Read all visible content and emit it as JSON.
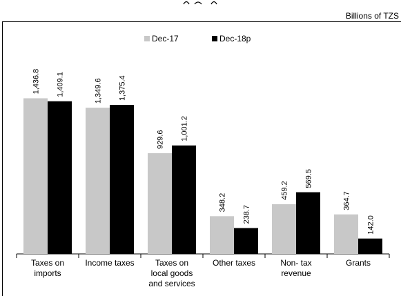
{
  "chart_data": {
    "type": "bar",
    "unit": "Billions of TZS",
    "categories": [
      [
        "Taxes on",
        "imports"
      ],
      [
        "Income taxes"
      ],
      [
        "Taxes on",
        "local goods",
        "and services"
      ],
      [
        "Other taxes"
      ],
      [
        "Non- tax",
        "revenue"
      ],
      [
        "Grants"
      ]
    ],
    "series": [
      {
        "name": "Dec-17",
        "color": "#c8c8c8",
        "values": [
          1436.8,
          1349.6,
          929.6,
          348.2,
          459.2,
          364.7
        ],
        "labels": [
          "1,436.8",
          "1,349.6",
          "929.6",
          "348.2",
          "459.2",
          "364.7"
        ]
      },
      {
        "name": "Dec-18p",
        "color": "#000000",
        "values": [
          1409.1,
          1375.4,
          1001.2,
          238.7,
          569.5,
          142.0
        ],
        "labels": [
          "1,409.1",
          "1,375.4",
          "1,001.2",
          "238.7",
          "569.5",
          "142.0"
        ]
      }
    ],
    "ylim": [
      0,
      1750
    ],
    "grid": false,
    "legend_position": "top-center"
  }
}
